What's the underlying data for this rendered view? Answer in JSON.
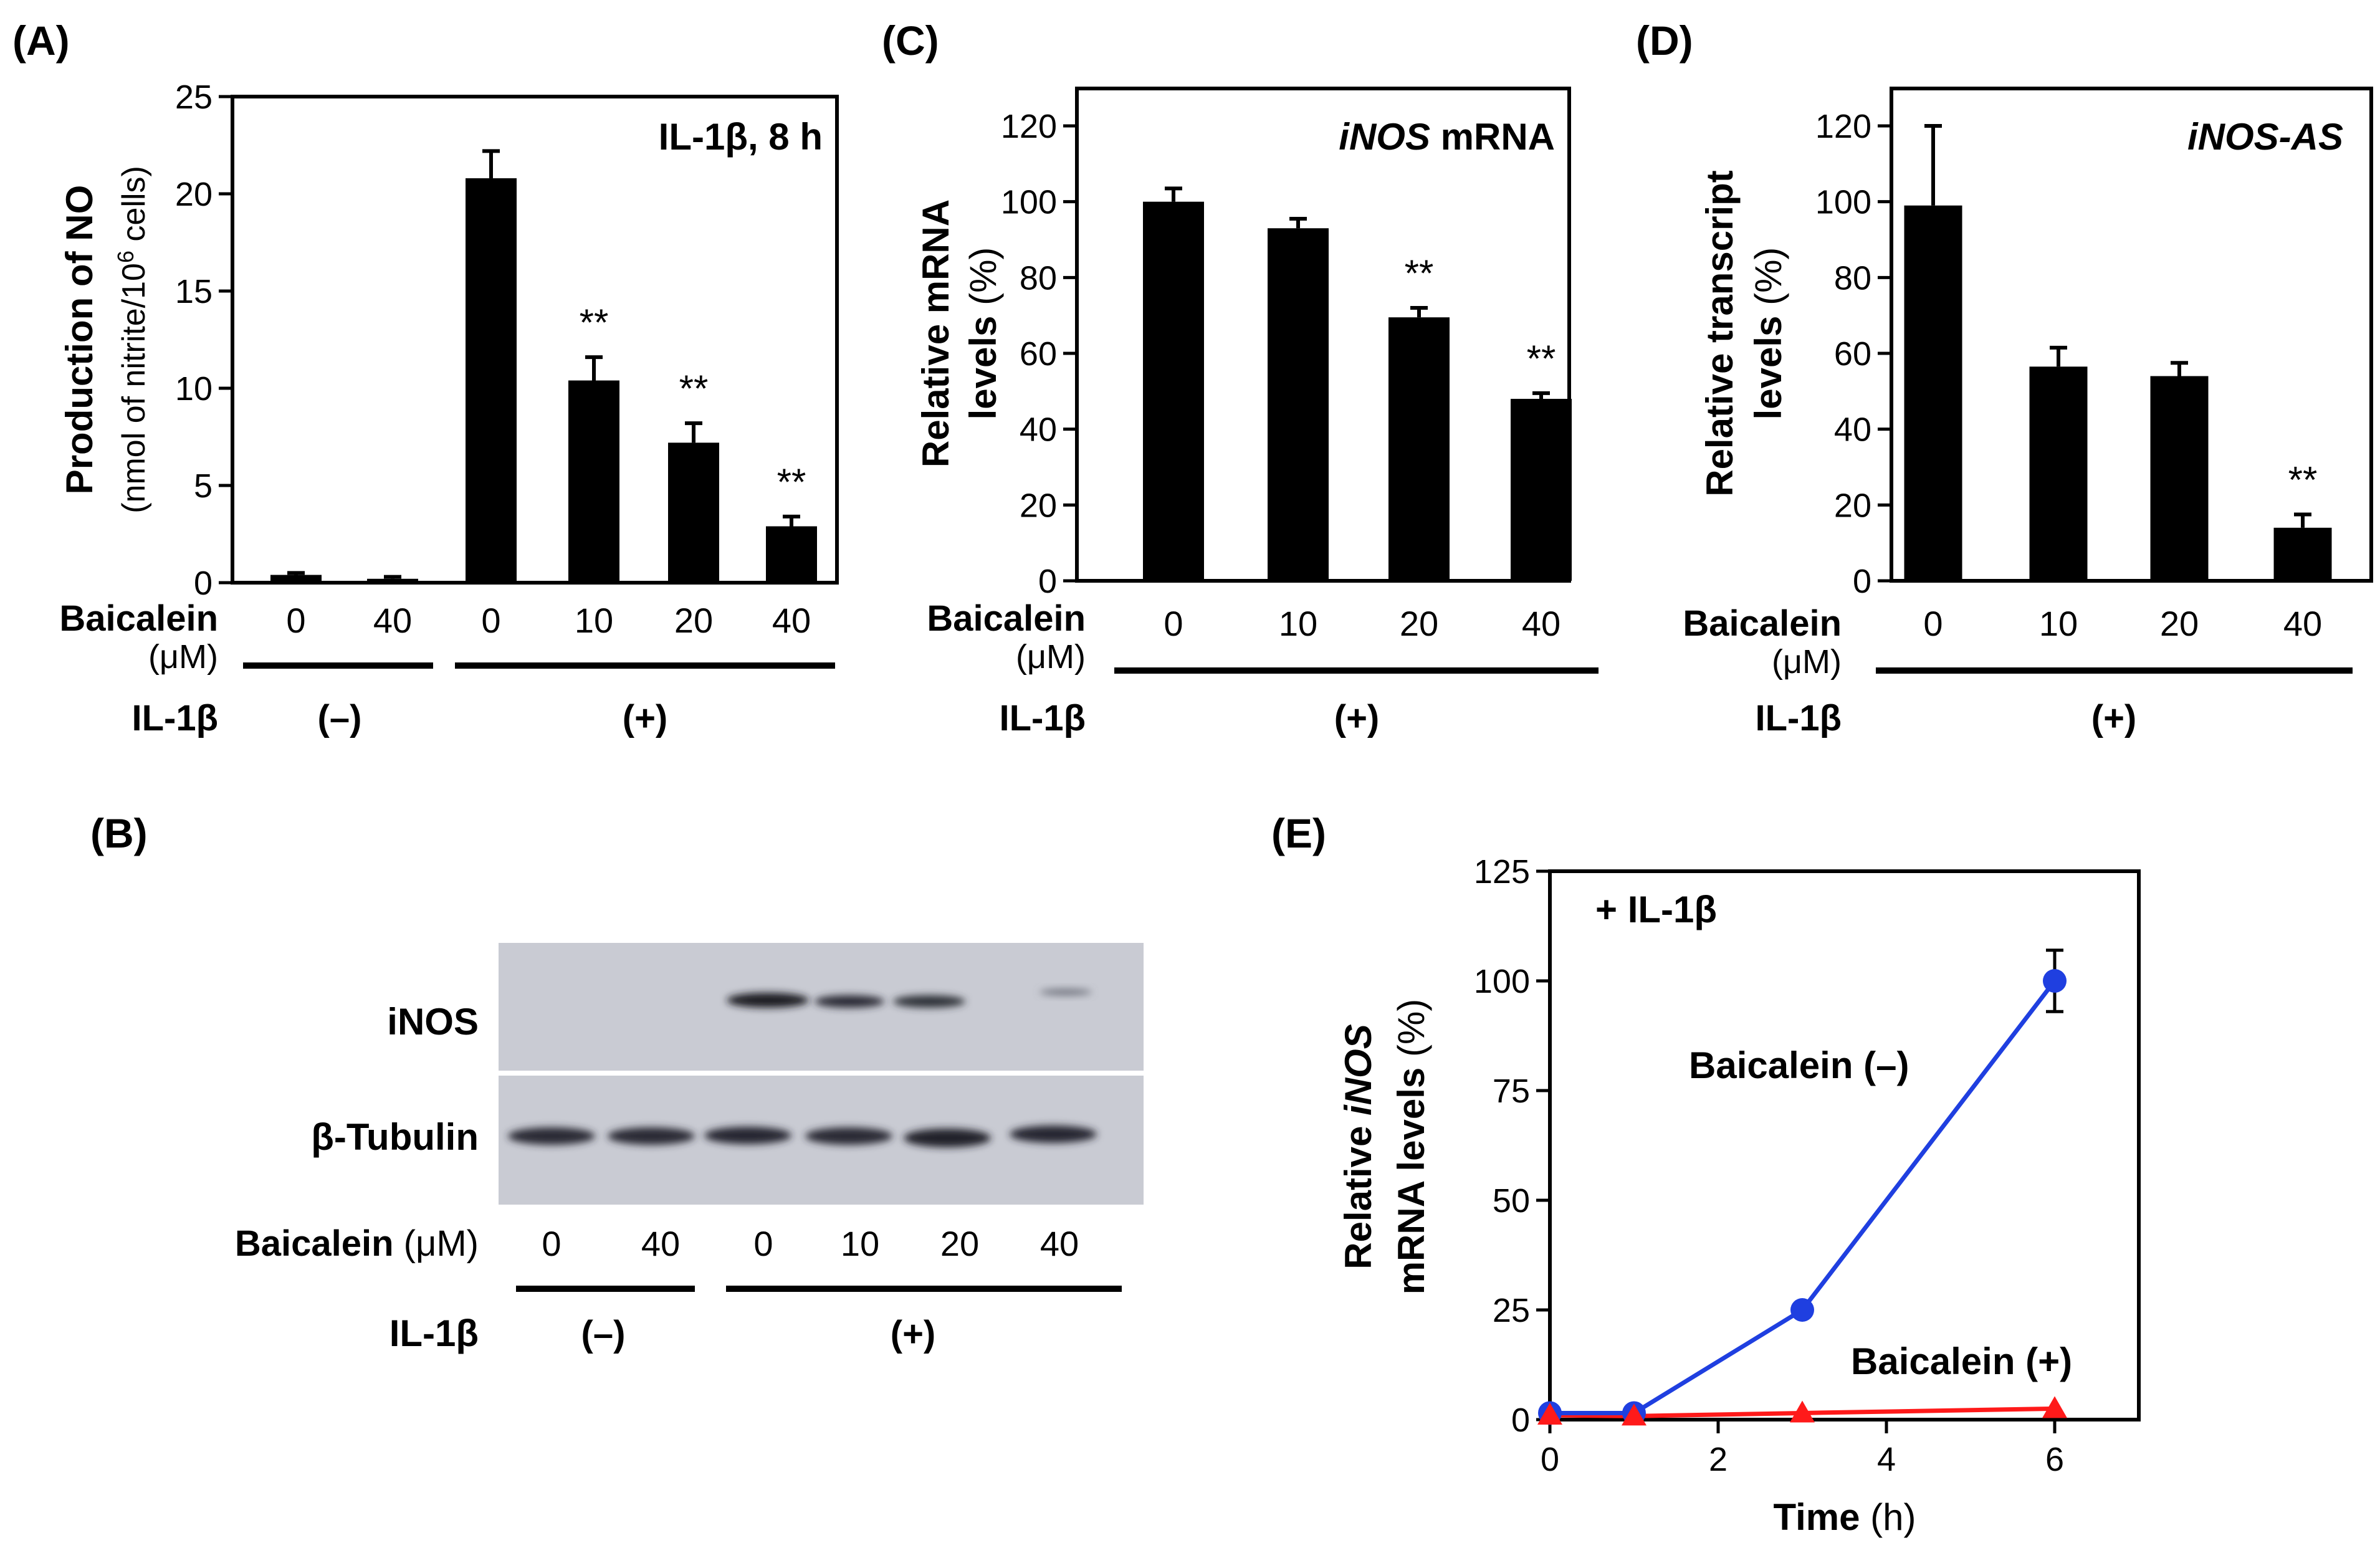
{
  "chart_data": [
    {
      "panel": "(A)",
      "type": "bar",
      "annotation": "IL-1β, 8 h",
      "ylabel": "Production of NO",
      "ylabel2": "(nmol of nitrite/10",
      "ylabel2_sup": "6",
      "ylabel2_end": " cells)",
      "ylim": [
        0,
        25
      ],
      "yticks": [
        "0",
        "5",
        "10",
        "15",
        "20",
        "25"
      ],
      "categories": [
        "0",
        "40",
        "0",
        "10",
        "20",
        "40"
      ],
      "values": [
        0.4,
        0.2,
        20.8,
        10.4,
        7.2,
        2.9
      ],
      "errors": [
        0.1,
        0.1,
        1.4,
        1.2,
        1.0,
        0.5
      ],
      "sig": [
        "",
        "",
        "",
        "**",
        "**",
        "**"
      ],
      "xlabel": "Baicalein",
      "xunit": "(μM)",
      "group_label": "IL-1β",
      "groups": [
        "(–)",
        "(+)"
      ]
    },
    {
      "panel": "(C)",
      "type": "bar",
      "annotation_italic": "iNOS",
      "annotation_rest": " mRNA",
      "ylabel": "Relative mRNA",
      "ylabel2": "levels",
      "ylabel2_unit": " (%)",
      "ylim": [
        0,
        120
      ],
      "yticks": [
        "0",
        "20",
        "40",
        "60",
        "80",
        "100",
        "120"
      ],
      "categories": [
        "0",
        "10",
        "20",
        "40"
      ],
      "values": [
        100,
        93,
        69.5,
        48
      ],
      "errors": [
        3.5,
        2.5,
        2.5,
        1.5
      ],
      "sig": [
        "",
        "",
        "**",
        "**"
      ],
      "xlabel": "Baicalein",
      "xunit": "(μM)",
      "group_label": "IL-1β",
      "groups": [
        "(+)"
      ]
    },
    {
      "panel": "(D)",
      "type": "bar",
      "annotation_italic": "iNOS-AS",
      "ylabel": "Relative transcript",
      "ylabel2": "levels",
      "ylabel2_unit": " (%)",
      "ylim": [
        0,
        120
      ],
      "yticks": [
        "0",
        "20",
        "40",
        "60",
        "80",
        "100",
        "120"
      ],
      "categories": [
        "0",
        "10",
        "20",
        "40"
      ],
      "values": [
        99,
        56.5,
        54,
        14
      ],
      "errors": [
        21,
        5,
        3.5,
        3.5
      ],
      "sig": [
        "",
        "",
        "",
        "**"
      ],
      "xlabel": "Baicalein",
      "xunit": "(μM)",
      "group_label": "IL-1β",
      "groups": [
        "(+)"
      ]
    },
    {
      "panel": "(E)",
      "type": "line",
      "annotation": "+ IL-1β",
      "ylabel_pre": "Relative ",
      "ylabel_italic": "iNOS",
      "ylabel2": "mRNA levels",
      "ylabel2_unit": " (%)",
      "xlabel": "Time",
      "xunit": " (h)",
      "xlim": [
        0,
        7
      ],
      "ylim": [
        0,
        125
      ],
      "xticks": [
        "0",
        "2",
        "4",
        "6"
      ],
      "yticks": [
        "0",
        "25",
        "50",
        "75",
        "100",
        "125"
      ],
      "series": [
        {
          "name": "Baicalein (–)",
          "color": "#1f3fe0",
          "marker": "circle",
          "x": [
            0,
            1,
            3,
            6
          ],
          "y": [
            1.5,
            1.5,
            25,
            100
          ],
          "errors": [
            0,
            0,
            0,
            7
          ]
        },
        {
          "name": "Baicalein (+)",
          "color": "#ff1a1a",
          "marker": "triangle",
          "x": [
            0,
            1,
            3,
            6
          ],
          "y": [
            1,
            0.8,
            1.5,
            2.5
          ],
          "errors": [
            0,
            0,
            0,
            0
          ]
        }
      ]
    }
  ],
  "blot": {
    "panel": "(B)",
    "rows": [
      "iNOS",
      "β-Tubulin"
    ],
    "xlabel": "Baicalein",
    "xunit": "(μM)",
    "lanes": [
      "0",
      "40",
      "0",
      "10",
      "20",
      "40"
    ],
    "group_label": "IL-1β",
    "groups": [
      "(–)",
      "(+)"
    ]
  }
}
